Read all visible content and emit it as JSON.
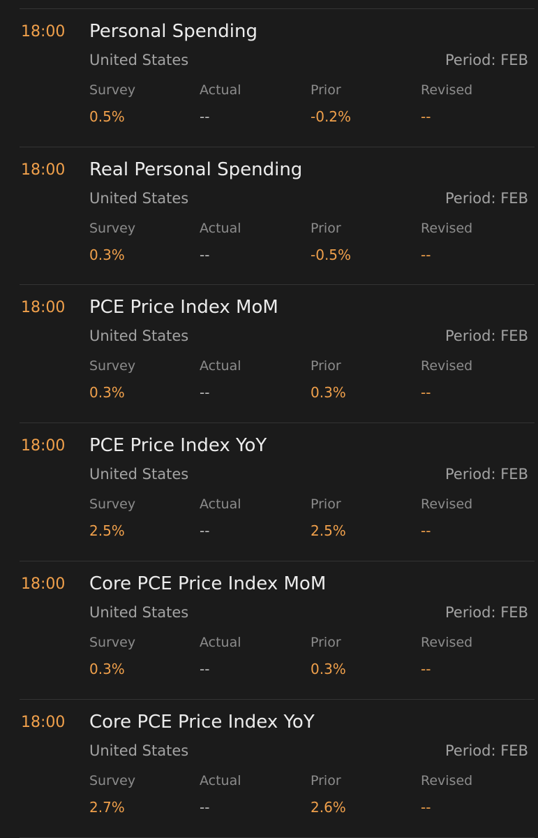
{
  "events": [
    {
      "time": "18:00",
      "title": "Personal Spending",
      "country": "United States",
      "period": "Period: FEB",
      "columns": [
        {
          "label": "Survey",
          "value": "0.5%"
        },
        {
          "label": "Actual",
          "value": "--"
        },
        {
          "label": "Prior",
          "value": "-0.2%"
        },
        {
          "label": "Revised",
          "value": "--"
        }
      ]
    },
    {
      "time": "18:00",
      "title": "Real Personal Spending",
      "country": "United States",
      "period": "Period: FEB",
      "columns": [
        {
          "label": "Survey",
          "value": "0.3%"
        },
        {
          "label": "Actual",
          "value": "--"
        },
        {
          "label": "Prior",
          "value": "-0.5%"
        },
        {
          "label": "Revised",
          "value": "--"
        }
      ]
    },
    {
      "time": "18:00",
      "title": "PCE Price Index MoM",
      "country": "United States",
      "period": "Period: FEB",
      "columns": [
        {
          "label": "Survey",
          "value": "0.3%"
        },
        {
          "label": "Actual",
          "value": "--"
        },
        {
          "label": "Prior",
          "value": "0.3%"
        },
        {
          "label": "Revised",
          "value": "--"
        }
      ]
    },
    {
      "time": "18:00",
      "title": "PCE Price Index YoY",
      "country": "United States",
      "period": "Period: FEB",
      "columns": [
        {
          "label": "Survey",
          "value": "2.5%"
        },
        {
          "label": "Actual",
          "value": "--"
        },
        {
          "label": "Prior",
          "value": "2.5%"
        },
        {
          "label": "Revised",
          "value": "--"
        }
      ]
    },
    {
      "time": "18:00",
      "title": "Core PCE Price Index MoM",
      "country": "United States",
      "period": "Period: FEB",
      "columns": [
        {
          "label": "Survey",
          "value": "0.3%"
        },
        {
          "label": "Actual",
          "value": "--"
        },
        {
          "label": "Prior",
          "value": "0.3%"
        },
        {
          "label": "Revised",
          "value": "--"
        }
      ]
    },
    {
      "time": "18:00",
      "title": "Core PCE Price Index YoY",
      "country": "United States",
      "period": "Period: FEB",
      "columns": [
        {
          "label": "Survey",
          "value": "2.7%"
        },
        {
          "label": "Actual",
          "value": "--"
        },
        {
          "label": "Prior",
          "value": "2.6%"
        },
        {
          "label": "Revised",
          "value": "--"
        }
      ]
    }
  ]
}
